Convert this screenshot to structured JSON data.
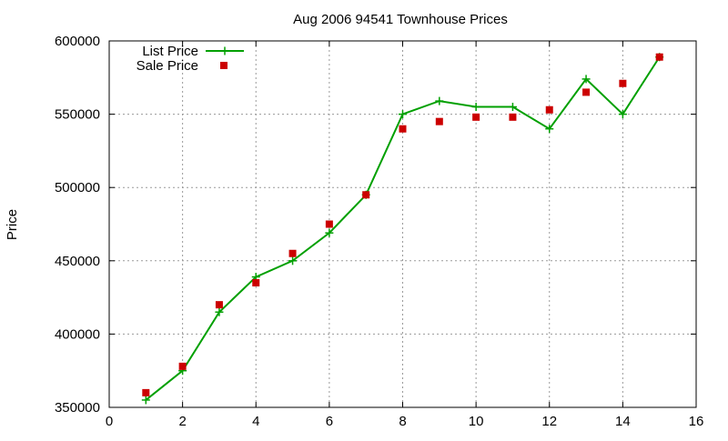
{
  "chart_data": {
    "type": "line",
    "title": "Aug 2006 94541 Townhouse Prices",
    "xlabel": "",
    "ylabel": "Price",
    "xlim": [
      0,
      16
    ],
    "ylim": [
      350000,
      600000
    ],
    "x_ticks": [
      0,
      2,
      4,
      6,
      8,
      10,
      12,
      14,
      16
    ],
    "y_ticks": [
      350000,
      400000,
      450000,
      500000,
      550000,
      600000
    ],
    "grid": true,
    "legend_position": "top-left",
    "series": [
      {
        "name": "List Price",
        "style": "line-with-plus-markers",
        "color": "#00a000",
        "x": [
          1,
          2,
          3,
          4,
          5,
          6,
          7,
          8,
          9,
          10,
          11,
          12,
          13,
          14,
          15
        ],
        "y": [
          355000,
          375000,
          415000,
          439000,
          450000,
          469000,
          495000,
          550000,
          559000,
          555000,
          555000,
          540000,
          574000,
          550000,
          589000
        ]
      },
      {
        "name": "Sale Price",
        "style": "square-markers",
        "color": "#cc0000",
        "x": [
          1,
          2,
          3,
          4,
          5,
          6,
          7,
          8,
          9,
          10,
          11,
          12,
          13,
          14,
          15
        ],
        "y": [
          360000,
          378000,
          420000,
          435000,
          455000,
          475000,
          495000,
          540000,
          545000,
          548000,
          548000,
          553000,
          565000,
          571000,
          589000
        ]
      }
    ]
  }
}
